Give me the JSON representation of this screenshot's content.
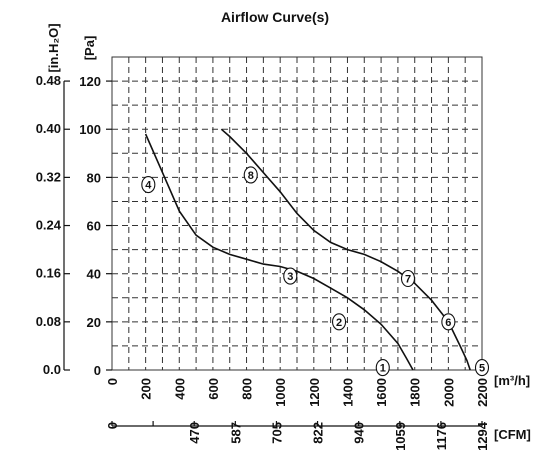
{
  "chart_data": {
    "type": "line",
    "title": "Airflow Curve(s)",
    "x_unit_primary": "[m³/h]",
    "x_unit_secondary": "[CFM]",
    "y_unit_primary": "[Pa]",
    "y_unit_secondary": "[in.H₂O]",
    "xlim": [
      0,
      2200
    ],
    "ylim": [
      0,
      130
    ],
    "x_ticks": [
      "0",
      "200",
      "400",
      "600",
      "800",
      "1000",
      "1200",
      "1400",
      "1600",
      "1800",
      "2000",
      "2200"
    ],
    "cfm_ticks": [
      "0",
      "",
      "470",
      "587",
      "705",
      "822",
      "940",
      "1059",
      "1176",
      "1294"
    ],
    "y_ticks": [
      "0",
      "20",
      "40",
      "60",
      "80",
      "100",
      "120"
    ],
    "inh2o_ticks": [
      "0.0",
      "0.08",
      "0.16",
      "0.24",
      "0.32",
      "0.40",
      "0.48"
    ],
    "grid": true,
    "series": [
      {
        "name": "1",
        "points": [
          [
            200,
            98
          ],
          [
            300,
            82
          ],
          [
            400,
            66
          ],
          [
            500,
            56
          ],
          [
            600,
            51
          ],
          [
            700,
            48
          ],
          [
            800,
            46
          ],
          [
            900,
            44
          ],
          [
            1000,
            43
          ],
          [
            1100,
            41
          ],
          [
            1200,
            38
          ],
          [
            1300,
            34
          ],
          [
            1400,
            30
          ],
          [
            1500,
            25
          ],
          [
            1600,
            19
          ],
          [
            1700,
            11
          ],
          [
            1750,
            5
          ],
          [
            1790,
            0
          ]
        ],
        "label_at": [
          1610,
          1
        ]
      },
      {
        "name": "2",
        "label_at": [
          1350,
          20
        ]
      },
      {
        "name": "3",
        "label_at": [
          1060,
          39
        ]
      },
      {
        "name": "4",
        "label_at": [
          216,
          77
        ]
      },
      {
        "name": "5",
        "points": [
          [
            650,
            100
          ],
          [
            700,
            97
          ],
          [
            800,
            90
          ],
          [
            900,
            82
          ],
          [
            1000,
            74
          ],
          [
            1100,
            65
          ],
          [
            1200,
            58
          ],
          [
            1300,
            53
          ],
          [
            1400,
            50
          ],
          [
            1500,
            48
          ],
          [
            1600,
            45
          ],
          [
            1700,
            41
          ],
          [
            1800,
            36
          ],
          [
            1900,
            29
          ],
          [
            2000,
            20
          ],
          [
            2070,
            10
          ],
          [
            2110,
            4
          ],
          [
            2130,
            0
          ]
        ],
        "label_at": [
          2200,
          1
        ]
      },
      {
        "name": "6",
        "label_at": [
          2000,
          20
        ]
      },
      {
        "name": "7",
        "label_at": [
          1760,
          38
        ]
      },
      {
        "name": "8",
        "label_at": [
          825,
          81
        ]
      }
    ]
  }
}
